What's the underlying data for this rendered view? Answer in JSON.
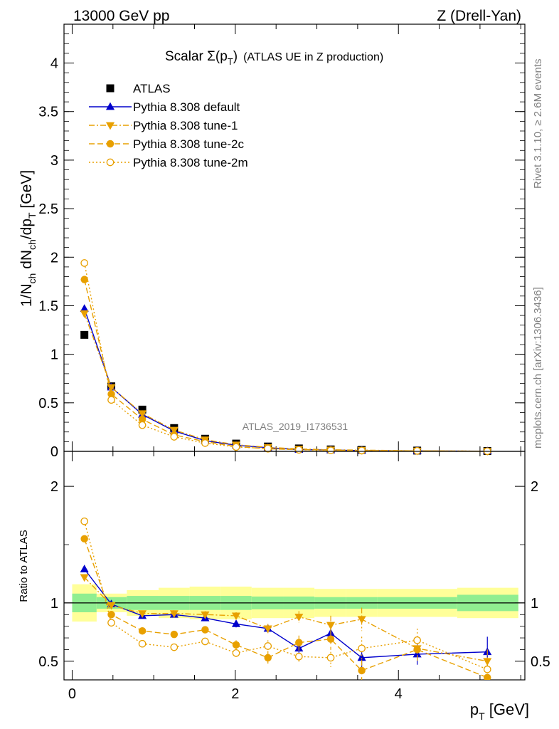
{
  "header": {
    "left": "13000 GeV pp",
    "right": "Z (Drell-Yan)"
  },
  "side_labels": {
    "rivet": "Rivet 3.1.10, ≥ 2.6M events",
    "mcplots": "mcplots.cern.ch [arXiv:1306.3436]"
  },
  "colors": {
    "atlas": "#000000",
    "default": "#0000cc",
    "tunes": "#e8a000",
    "band_inner": "#90ee90",
    "band_outer": "#ffff99"
  },
  "chart_data": [
    {
      "type": "line",
      "title_main": "Scalar Σ(p",
      "title_sub": "T",
      "title_close": ")",
      "title_rest": "(ATLAS UE in Z production)",
      "watermark": "ATLAS_2019_I1736531",
      "ylabel_parts": [
        "1/N",
        "ch",
        " dN",
        "ch",
        "/dp",
        "T",
        " [GeV]"
      ],
      "ylim": [
        0,
        4.4
      ],
      "xlim": [
        -0.1,
        5.55
      ],
      "y_ticks": [
        "0",
        "0.5",
        "1",
        "1.5",
        "2",
        "2.5",
        "3",
        "3.5",
        "4"
      ],
      "x": [
        0.15,
        0.48,
        0.86,
        1.25,
        1.63,
        2.01,
        2.4,
        2.78,
        3.17,
        3.55,
        4.23,
        5.09
      ],
      "series": [
        {
          "name": "ATLAS",
          "marker": "square",
          "values": [
            1.2,
            0.67,
            0.43,
            0.24,
            0.13,
            0.08,
            0.05,
            0.03,
            0.02,
            0.015,
            0.008,
            0.004
          ]
        },
        {
          "name": "Pythia 8.308 default",
          "marker": "triangle-up",
          "line": "solid",
          "values": [
            1.47,
            0.66,
            0.38,
            0.21,
            0.11,
            0.063,
            0.038,
            0.018,
            0.014,
            0.008,
            0.0045,
            0.0025
          ]
        },
        {
          "name": "Pythia 8.308 tune-1",
          "marker": "triangle-down",
          "line": "dashdot",
          "values": [
            1.42,
            0.66,
            0.39,
            0.22,
            0.12,
            0.068,
            0.042,
            0.025,
            0.016,
            0.013,
            0.005,
            0.002
          ]
        },
        {
          "name": "Pythia 8.308 tune-2c",
          "marker": "circle",
          "line": "dashed",
          "values": [
            1.77,
            0.59,
            0.33,
            0.17,
            0.1,
            0.05,
            0.026,
            0.018,
            0.013,
            0.006,
            0.005,
            0.0015
          ]
        },
        {
          "name": "Pythia 8.308 tune-2m",
          "marker": "open-circle",
          "line": "dotted",
          "values": [
            1.94,
            0.53,
            0.27,
            0.15,
            0.085,
            0.045,
            0.03,
            0.016,
            0.01,
            0.009,
            0.0055,
            0.0017
          ]
        }
      ]
    },
    {
      "type": "line",
      "ylabel": "Ratio to ATLAS",
      "xlabel_main": "p",
      "xlabel_sub": "T",
      "xlabel_rest": " [GeV]",
      "ylim": [
        0.34,
        2.3
      ],
      "xlim": [
        -0.1,
        5.55
      ],
      "y_ticks": [
        "0.5",
        "1",
        "2"
      ],
      "x_ticks": [
        "0",
        "2",
        "4"
      ],
      "x": [
        0.15,
        0.48,
        0.86,
        1.25,
        1.63,
        2.01,
        2.4,
        2.78,
        3.17,
        3.55,
        4.23,
        5.09
      ],
      "bands": {
        "edges": [
          0.0,
          0.3,
          0.67,
          1.06,
          1.44,
          1.82,
          2.2,
          2.59,
          2.97,
          3.36,
          3.74,
          4.72,
          5.47
        ],
        "inner": [
          0.08,
          0.05,
          0.06,
          0.06,
          0.06,
          0.06,
          0.055,
          0.055,
          0.05,
          0.05,
          0.05,
          0.07
        ],
        "outer": [
          0.16,
          0.08,
          0.11,
          0.13,
          0.14,
          0.14,
          0.13,
          0.13,
          0.12,
          0.12,
          0.12,
          0.13
        ]
      },
      "series": [
        {
          "name": "Pythia 8.308 default",
          "marker": "triangle-up",
          "line": "solid",
          "values": [
            1.29,
            0.99,
            0.89,
            0.9,
            0.87,
            0.82,
            0.78,
            0.61,
            0.74,
            0.53,
            0.56,
            0.58
          ],
          "err": [
            0.02,
            0.02,
            0.02,
            0.02,
            0.02,
            0.03,
            0.03,
            0.04,
            0.07,
            0.1,
            0.09,
            0.13
          ]
        },
        {
          "name": "Pythia 8.308 tune-1",
          "marker": "triangle-down",
          "line": "dashdot",
          "values": [
            1.22,
            0.98,
            0.91,
            0.91,
            0.9,
            0.89,
            0.78,
            0.88,
            0.81,
            0.86,
            0.61,
            0.5
          ],
          "err": [
            0.02,
            0.02,
            0.02,
            0.02,
            0.03,
            0.03,
            0.04,
            0.05,
            0.08,
            0.1,
            0.1,
            0.1
          ]
        },
        {
          "name": "Pythia 8.308 tune-2c",
          "marker": "circle",
          "line": "dashed",
          "values": [
            1.55,
            0.9,
            0.76,
            0.73,
            0.77,
            0.64,
            0.53,
            0.66,
            0.69,
            0.42,
            0.6,
            0.36
          ],
          "err": [
            0.02,
            0.02,
            0.02,
            0.02,
            0.03,
            0.04,
            0.05,
            0.06,
            0.08,
            0.09,
            0.1,
            0.1
          ]
        },
        {
          "name": "Pythia 8.308 tune-2m",
          "marker": "open-circle",
          "line": "dotted",
          "values": [
            1.7,
            0.83,
            0.65,
            0.62,
            0.67,
            0.57,
            0.63,
            0.54,
            0.53,
            0.61,
            0.68,
            0.43
          ],
          "err": [
            0.02,
            0.02,
            0.02,
            0.02,
            0.03,
            0.04,
            0.05,
            0.06,
            0.08,
            0.1,
            0.1,
            0.1
          ]
        }
      ]
    }
  ]
}
